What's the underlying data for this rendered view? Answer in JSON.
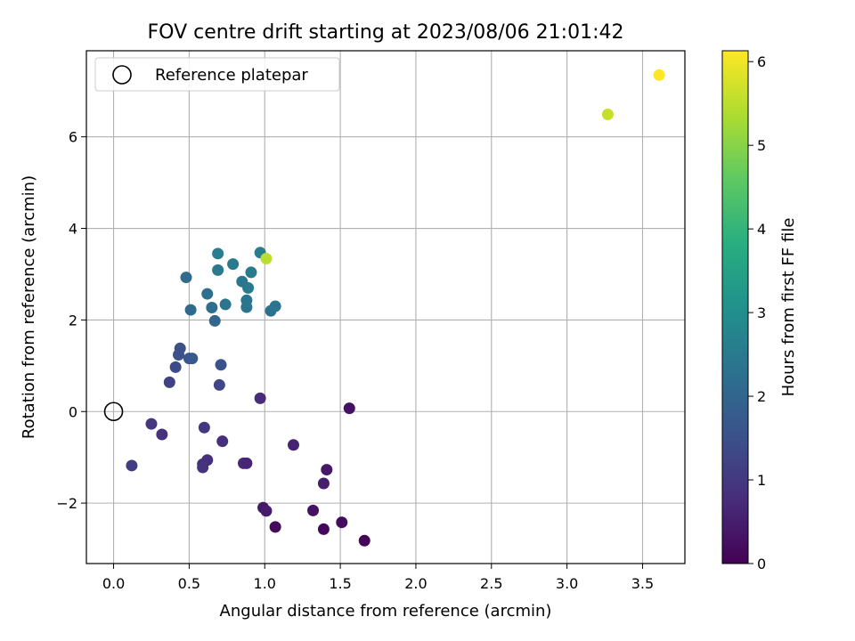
{
  "chart_data": {
    "type": "scatter",
    "title": "FOV centre drift starting at 2023/08/06 21:01:42",
    "xlabel": "Angular distance from reference (arcmin)",
    "ylabel": "Rotation from reference (arcmin)",
    "colorbar_label": "Hours from first FF file",
    "colormap": "viridis",
    "xlim": [
      -0.18,
      3.78
    ],
    "ylim": [
      -3.32,
      7.88
    ],
    "color_range": [
      0,
      6.13
    ],
    "xticks": [
      "0.0",
      "0.5",
      "1.0",
      "1.5",
      "2.0",
      "2.5",
      "3.0",
      "3.5"
    ],
    "xtick_values": [
      0,
      0.5,
      1.0,
      1.5,
      2.0,
      2.5,
      3.0,
      3.5
    ],
    "yticks": [
      "−2",
      "0",
      "2",
      "4",
      "6"
    ],
    "ytick_values": [
      -2,
      0,
      2,
      4,
      6
    ],
    "cticks": [
      "0",
      "1",
      "2",
      "3",
      "4",
      "5",
      "6"
    ],
    "ctick_values": [
      0,
      1,
      2,
      3,
      4,
      5,
      6
    ],
    "grid": true,
    "legend": {
      "placement": "upper-left",
      "label": "Reference platepar",
      "marker": "open-circle"
    },
    "reference_point": {
      "x": 0,
      "y": 0
    },
    "points": [
      {
        "x": 1.66,
        "y": -2.82,
        "c": 0.05
      },
      {
        "x": 1.39,
        "y": -2.57,
        "c": 0.1
      },
      {
        "x": 1.51,
        "y": -2.42,
        "c": 0.2
      },
      {
        "x": 1.07,
        "y": -2.52,
        "c": 0.15
      },
      {
        "x": 1.32,
        "y": -2.16,
        "c": 0.3
      },
      {
        "x": 0.99,
        "y": -2.1,
        "c": 0.4
      },
      {
        "x": 1.01,
        "y": -2.17,
        "c": 0.45
      },
      {
        "x": 1.39,
        "y": -1.57,
        "c": 0.5
      },
      {
        "x": 1.41,
        "y": -1.27,
        "c": 0.4
      },
      {
        "x": 1.19,
        "y": -0.73,
        "c": 0.6
      },
      {
        "x": 1.56,
        "y": 0.07,
        "c": 0.3
      },
      {
        "x": 0.97,
        "y": 0.29,
        "c": 0.75
      },
      {
        "x": 0.86,
        "y": -1.13,
        "c": 0.7
      },
      {
        "x": 0.88,
        "y": -1.13,
        "c": 0.65
      },
      {
        "x": 0.72,
        "y": -0.65,
        "c": 0.8
      },
      {
        "x": 0.62,
        "y": -1.06,
        "c": 0.8
      },
      {
        "x": 0.59,
        "y": -1.15,
        "c": 0.85
      },
      {
        "x": 0.59,
        "y": -1.22,
        "c": 0.9
      },
      {
        "x": 0.6,
        "y": -0.35,
        "c": 1.0
      },
      {
        "x": 0.32,
        "y": -0.5,
        "c": 0.9
      },
      {
        "x": 0.25,
        "y": -0.27,
        "c": 0.95
      },
      {
        "x": 0.12,
        "y": -1.18,
        "c": 1.1
      },
      {
        "x": 0.37,
        "y": 0.64,
        "c": 1.2
      },
      {
        "x": 0.7,
        "y": 0.58,
        "c": 1.3
      },
      {
        "x": 0.41,
        "y": 0.97,
        "c": 1.4
      },
      {
        "x": 0.71,
        "y": 1.02,
        "c": 1.55
      },
      {
        "x": 0.43,
        "y": 1.24,
        "c": 1.5
      },
      {
        "x": 0.44,
        "y": 1.38,
        "c": 1.5
      },
      {
        "x": 0.5,
        "y": 1.16,
        "c": 1.6
      },
      {
        "x": 0.52,
        "y": 1.16,
        "c": 1.7
      },
      {
        "x": 0.67,
        "y": 1.98,
        "c": 2.0
      },
      {
        "x": 0.51,
        "y": 2.22,
        "c": 2.1
      },
      {
        "x": 0.65,
        "y": 2.27,
        "c": 2.2
      },
      {
        "x": 0.62,
        "y": 2.57,
        "c": 2.2
      },
      {
        "x": 0.48,
        "y": 2.93,
        "c": 2.1
      },
      {
        "x": 0.74,
        "y": 2.34,
        "c": 2.4
      },
      {
        "x": 0.88,
        "y": 2.28,
        "c": 2.4
      },
      {
        "x": 0.88,
        "y": 2.43,
        "c": 2.4
      },
      {
        "x": 0.89,
        "y": 2.7,
        "c": 2.5
      },
      {
        "x": 0.85,
        "y": 2.84,
        "c": 2.4
      },
      {
        "x": 0.69,
        "y": 3.09,
        "c": 2.5
      },
      {
        "x": 0.79,
        "y": 3.22,
        "c": 2.5
      },
      {
        "x": 0.91,
        "y": 3.04,
        "c": 2.5
      },
      {
        "x": 1.04,
        "y": 2.2,
        "c": 2.3
      },
      {
        "x": 1.07,
        "y": 2.3,
        "c": 2.4
      },
      {
        "x": 0.69,
        "y": 3.45,
        "c": 2.6
      },
      {
        "x": 0.97,
        "y": 3.47,
        "c": 2.6
      },
      {
        "x": 1.01,
        "y": 3.34,
        "c": 5.5
      },
      {
        "x": 3.27,
        "y": 6.49,
        "c": 5.6
      },
      {
        "x": 3.61,
        "y": 7.35,
        "c": 6.13
      }
    ]
  }
}
